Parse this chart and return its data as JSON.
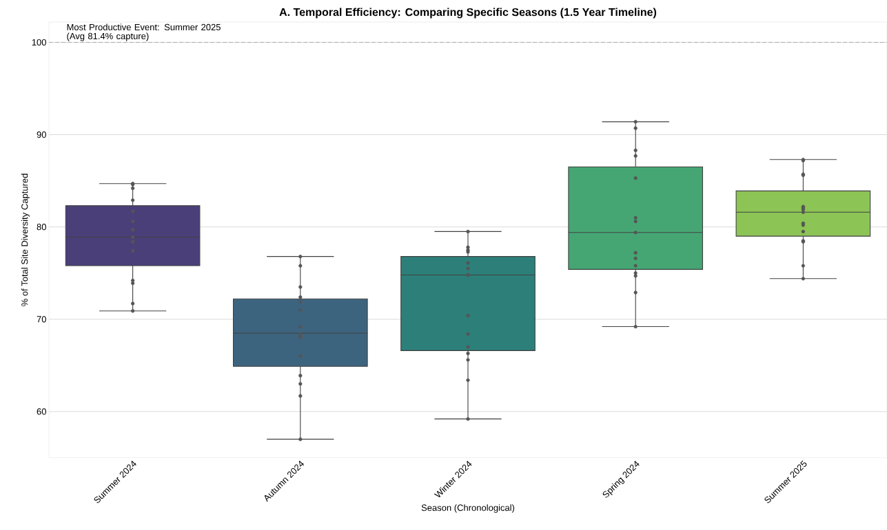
{
  "chart_data": {
    "type": "box",
    "title": "A. Temporal Efficiency: Comparing Specific Seasons (1.5 Year Timeline)",
    "xlabel": "Season (Chronological)",
    "ylabel": "% of Total Site Diversity Captured",
    "categories": [
      "Summer 2024",
      "Autumn 2024",
      "Winter 2024",
      "Spring 2024",
      "Summer 2025"
    ],
    "colors": [
      "#4b3f79",
      "#3d647f",
      "#2d7f7a",
      "#45a674",
      "#8cc455"
    ],
    "boxes": [
      {
        "low": 70.9,
        "q1": 75.8,
        "median": 78.9,
        "q3": 82.3,
        "high": 84.7
      },
      {
        "low": 57.0,
        "q1": 64.9,
        "median": 68.5,
        "q3": 72.2,
        "high": 76.8
      },
      {
        "low": 59.2,
        "q1": 66.6,
        "median": 74.8,
        "q3": 76.8,
        "high": 79.5
      },
      {
        "low": 69.2,
        "q1": 75.4,
        "median": 79.4,
        "q3": 86.5,
        "high": 91.4
      },
      {
        "low": 74.4,
        "q1": 79.0,
        "median": 81.6,
        "q3": 83.9,
        "high": 87.3
      }
    ],
    "series": [
      {
        "type": "scatter",
        "color": "#555555",
        "marker": "circle",
        "x": [
          "Summer 2024",
          "Summer 2024",
          "Summer 2024",
          "Summer 2024",
          "Summer 2024",
          "Summer 2024",
          "Summer 2024",
          "Summer 2024",
          "Summer 2024",
          "Summer 2024",
          "Summer 2024",
          "Summer 2024",
          "Summer 2024",
          "Summer 2024",
          "Summer 2024",
          "Autumn 2024",
          "Autumn 2024",
          "Autumn 2024",
          "Autumn 2024",
          "Autumn 2024",
          "Autumn 2024",
          "Autumn 2024",
          "Autumn 2024",
          "Autumn 2024",
          "Autumn 2024",
          "Autumn 2024",
          "Autumn 2024",
          "Autumn 2024",
          "Autumn 2024",
          "Autumn 2024",
          "Winter 2024",
          "Winter 2024",
          "Winter 2024",
          "Winter 2024",
          "Winter 2024",
          "Winter 2024",
          "Winter 2024",
          "Winter 2024",
          "Winter 2024",
          "Winter 2024",
          "Winter 2024",
          "Winter 2024",
          "Winter 2024",
          "Winter 2024",
          "Winter 2024",
          "Spring 2024",
          "Spring 2024",
          "Spring 2024",
          "Spring 2024",
          "Spring 2024",
          "Spring 2024",
          "Spring 2024",
          "Spring 2024",
          "Spring 2024",
          "Spring 2024",
          "Spring 2024",
          "Spring 2024",
          "Spring 2024",
          "Spring 2024",
          "Spring 2024",
          "Summer 2025",
          "Summer 2025",
          "Summer 2025",
          "Summer 2025",
          "Summer 2025",
          "Summer 2025",
          "Summer 2025",
          "Summer 2025",
          "Summer 2025",
          "Summer 2025",
          "Summer 2025",
          "Summer 2025",
          "Summer 2025",
          "Summer 2025",
          "Summer 2025"
        ],
        "values": [
          84.7,
          84.6,
          84.2,
          82.9,
          81.7,
          80.6,
          79.7,
          78.9,
          78.9,
          78.4,
          77.4,
          74.2,
          73.9,
          71.7,
          70.9,
          76.8,
          75.8,
          73.5,
          72.4,
          71.9,
          71.0,
          69.2,
          68.4,
          68.2,
          68.0,
          66.0,
          63.9,
          63.0,
          61.7,
          57.0,
          79.5,
          77.8,
          77.5,
          77.3,
          76.1,
          75.5,
          74.8,
          74.8,
          70.4,
          68.4,
          67.0,
          66.3,
          65.6,
          63.4,
          59.2,
          91.4,
          90.7,
          88.3,
          87.7,
          85.3,
          81.0,
          80.6,
          79.4,
          77.2,
          76.6,
          75.8,
          75.0,
          74.7,
          72.9,
          69.2,
          87.3,
          87.2,
          85.7,
          85.6,
          82.2,
          82.1,
          81.9,
          81.6,
          80.4,
          80.2,
          79.5,
          78.5,
          78.4,
          75.8,
          74.4
        ]
      }
    ],
    "ref_lines": [
      {
        "axis": "y",
        "value": 100,
        "color": "#aaaaaa",
        "line_style": "dashed"
      }
    ],
    "annotations": [
      "Most Productive Event: Summer 2025\n(Avg 81.4% capture)"
    ],
    "ylim": [
      55,
      102.2
    ],
    "yticks": [
      60,
      70,
      80,
      90,
      100
    ],
    "grid": "y"
  }
}
